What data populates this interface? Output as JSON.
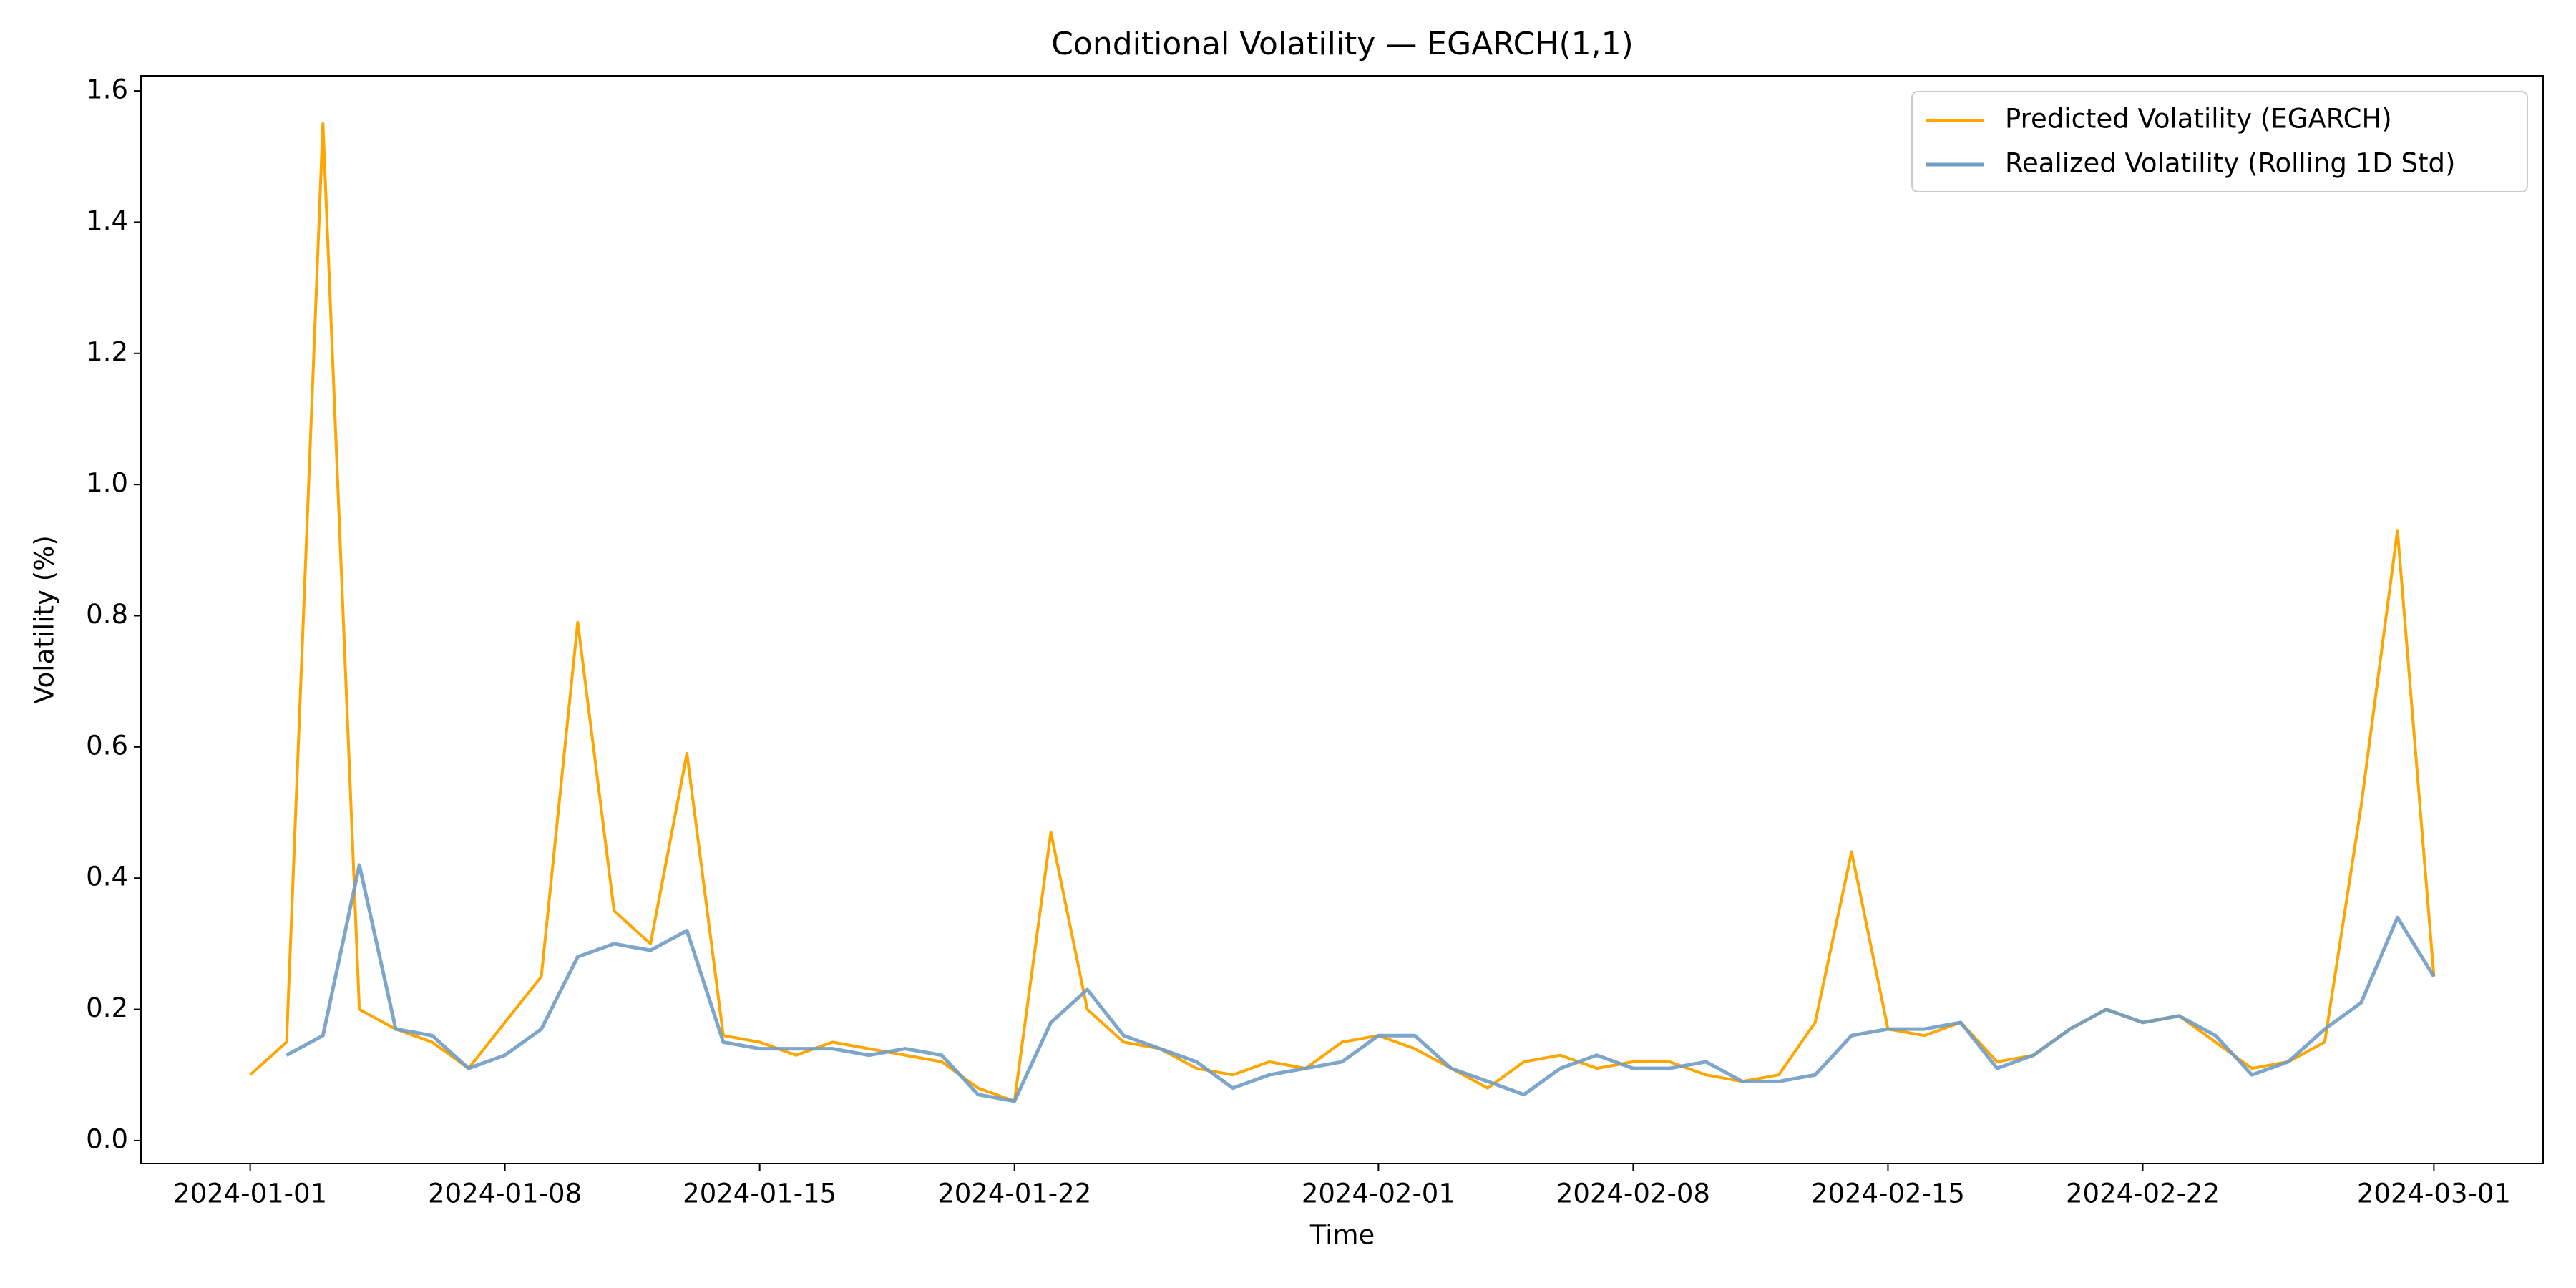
{
  "chart_data": {
    "type": "line",
    "title": "Conditional Volatility — EGARCH(1,1)",
    "x_label": "Time",
    "y_label": "Volatility (%)",
    "x": [
      "2024-01-01",
      "2024-01-02",
      "2024-01-03",
      "2024-01-04",
      "2024-01-05",
      "2024-01-06",
      "2024-01-07",
      "2024-01-08",
      "2024-01-09",
      "2024-01-10",
      "2024-01-11",
      "2024-01-12",
      "2024-01-13",
      "2024-01-14",
      "2024-01-15",
      "2024-01-16",
      "2024-01-17",
      "2024-01-18",
      "2024-01-19",
      "2024-01-20",
      "2024-01-21",
      "2024-01-22",
      "2024-01-23",
      "2024-01-24",
      "2024-01-25",
      "2024-01-26",
      "2024-01-27",
      "2024-01-28",
      "2024-01-29",
      "2024-01-30",
      "2024-01-31",
      "2024-02-01",
      "2024-02-02",
      "2024-02-03",
      "2024-02-04",
      "2024-02-05",
      "2024-02-06",
      "2024-02-07",
      "2024-02-08",
      "2024-02-09",
      "2024-02-10",
      "2024-02-11",
      "2024-02-12",
      "2024-02-13",
      "2024-02-14",
      "2024-02-15",
      "2024-02-16",
      "2024-02-17",
      "2024-02-18",
      "2024-02-19",
      "2024-02-20",
      "2024-02-21",
      "2024-02-22",
      "2024-02-23",
      "2024-02-24",
      "2024-02-25",
      "2024-02-26",
      "2024-02-27",
      "2024-02-28",
      "2024-02-29",
      "2024-03-01"
    ],
    "series": [
      {
        "name": "Predicted Volatility (EGARCH)",
        "color": "#ffa500",
        "width": 4,
        "values": [
          0.1,
          0.15,
          1.55,
          0.2,
          0.17,
          0.15,
          0.11,
          0.18,
          0.25,
          0.79,
          0.35,
          0.3,
          0.59,
          0.16,
          0.15,
          0.13,
          0.15,
          0.14,
          0.13,
          0.12,
          0.08,
          0.06,
          0.47,
          0.2,
          0.15,
          0.14,
          0.11,
          0.1,
          0.12,
          0.11,
          0.15,
          0.16,
          0.14,
          0.11,
          0.08,
          0.12,
          0.13,
          0.11,
          0.12,
          0.12,
          0.1,
          0.09,
          0.1,
          0.18,
          0.44,
          0.17,
          0.16,
          0.18,
          0.12,
          0.13,
          0.17,
          0.2,
          0.18,
          0.19,
          0.15,
          0.11,
          0.12,
          0.15,
          0.51,
          0.93,
          0.25
        ]
      },
      {
        "name": "Realized Volatility (Rolling 1D Std)",
        "color": "#6f9cc4",
        "width": 5,
        "values": [
          null,
          0.13,
          0.16,
          0.42,
          0.17,
          0.16,
          0.11,
          0.13,
          0.17,
          0.28,
          0.3,
          0.29,
          0.32,
          0.15,
          0.14,
          0.14,
          0.14,
          0.13,
          0.14,
          0.13,
          0.07,
          0.06,
          0.18,
          0.23,
          0.16,
          0.14,
          0.12,
          0.08,
          0.1,
          0.11,
          0.12,
          0.16,
          0.16,
          0.11,
          0.09,
          0.07,
          0.11,
          0.13,
          0.11,
          0.11,
          0.12,
          0.09,
          0.09,
          0.1,
          0.16,
          0.17,
          0.17,
          0.18,
          0.11,
          0.13,
          0.17,
          0.2,
          0.18,
          0.19,
          0.16,
          0.1,
          0.12,
          0.17,
          0.21,
          0.34,
          0.25
        ]
      }
    ],
    "xlim": [
      "2023-12-29",
      "2024-03-04"
    ],
    "xticks": [
      "2024-01-01",
      "2024-01-08",
      "2024-01-15",
      "2024-01-22",
      "2024-02-01",
      "2024-02-08",
      "2024-02-15",
      "2024-02-22",
      "2024-03-01"
    ],
    "ylim": [
      -0.035,
      1.623
    ],
    "yticks": [
      {
        "value": 0,
        "label": "0.0"
      },
      0.2,
      0.4,
      0.6,
      0.8,
      {
        "value": 1,
        "label": "1.0"
      },
      1.2,
      1.4,
      1.6
    ],
    "grid": false,
    "legend": "upper right"
  }
}
